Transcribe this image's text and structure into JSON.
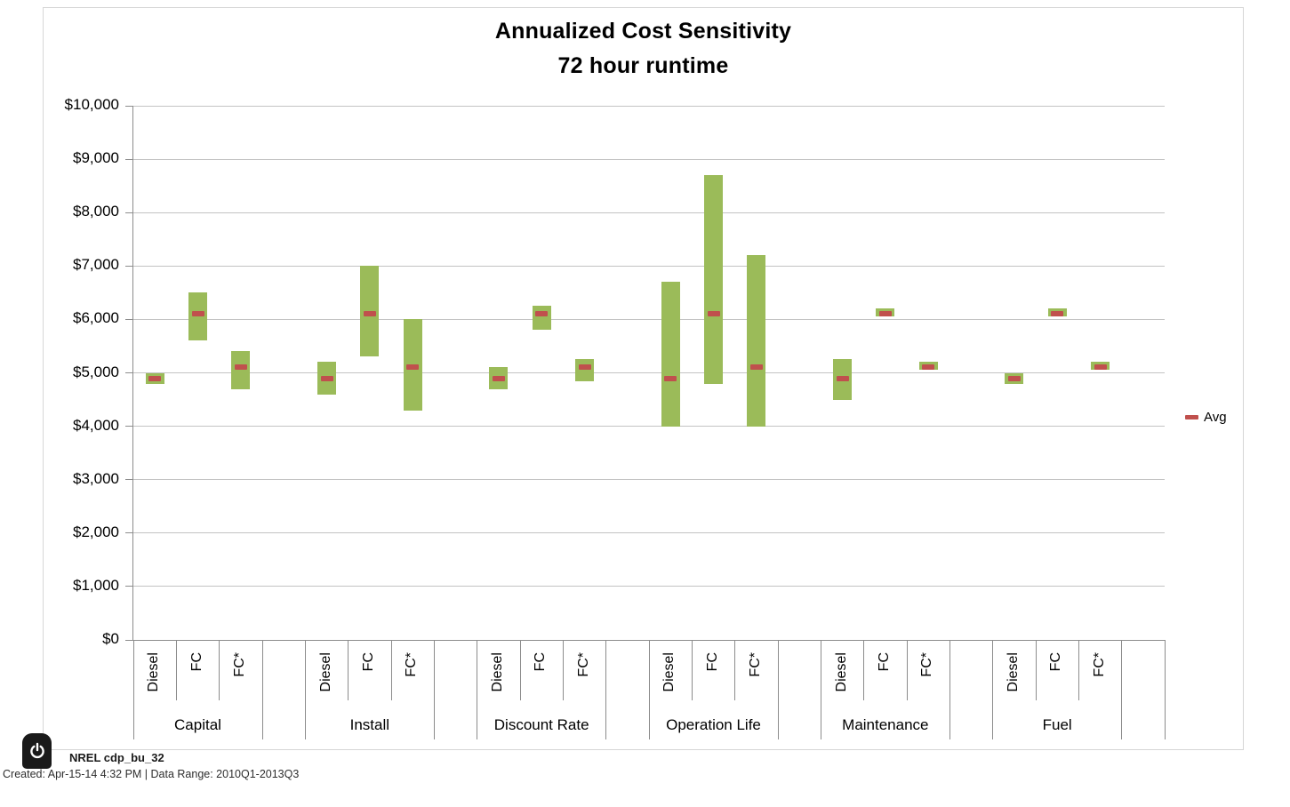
{
  "title": {
    "line1": "Annualized Cost Sensitivity",
    "line2": "72 hour runtime"
  },
  "legend": {
    "label": "Avg"
  },
  "footer": {
    "source": "NREL cdp_bu_32",
    "created": "Created: Apr-15-14  4:32 PM | Data Range: 2010Q1-2013Q3",
    "badge_icon": "power-icon"
  },
  "chart_data": {
    "type": "floating_bar_range_with_avg_markers",
    "title": "Annualized Cost Sensitivity",
    "subtitle": "72 hour runtime",
    "xlabel": "",
    "ylabel": "",
    "ylim": [
      0,
      10000
    ],
    "ytick_step": 1000,
    "ytick_labels": [
      "$0",
      "$1,000",
      "$2,000",
      "$3,000",
      "$4,000",
      "$5,000",
      "$6,000",
      "$7,000",
      "$8,000",
      "$9,000",
      "$10,000"
    ],
    "grid": true,
    "legend_position": "right-middle",
    "legend_entries": [
      {
        "name": "Avg",
        "marker": "dash",
        "color": "#C0504D"
      }
    ],
    "bar_color": "#9BBB59",
    "avg_color": "#C0504D",
    "bar_represents": "annualized cost min-max range ($/yr)",
    "marker_represents": "average annualized cost ($/yr)",
    "groups": [
      "Capital",
      "Install",
      "Discount Rate",
      "Operation Life",
      "Maintenance",
      "Fuel"
    ],
    "subcategories": [
      "Diesel",
      "FC",
      "FC*"
    ],
    "series": [
      {
        "group": "Capital",
        "fuel": "Diesel",
        "min": 4800,
        "max": 5000,
        "avg": 4900
      },
      {
        "group": "Capital",
        "fuel": "FC",
        "min": 5600,
        "max": 6500,
        "avg": 6100
      },
      {
        "group": "Capital",
        "fuel": "FC*",
        "min": 4700,
        "max": 5400,
        "avg": 5100
      },
      {
        "group": "Install",
        "fuel": "Diesel",
        "min": 4600,
        "max": 5200,
        "avg": 4900
      },
      {
        "group": "Install",
        "fuel": "FC",
        "min": 5300,
        "max": 7000,
        "avg": 6100
      },
      {
        "group": "Install",
        "fuel": "FC*",
        "min": 4300,
        "max": 6000,
        "avg": 5100
      },
      {
        "group": "Discount Rate",
        "fuel": "Diesel",
        "min": 4700,
        "max": 5100,
        "avg": 4900
      },
      {
        "group": "Discount Rate",
        "fuel": "FC",
        "min": 5800,
        "max": 6250,
        "avg": 6100
      },
      {
        "group": "Discount Rate",
        "fuel": "FC*",
        "min": 4850,
        "max": 5250,
        "avg": 5100
      },
      {
        "group": "Operation Life",
        "fuel": "Diesel",
        "min": 4000,
        "max": 6700,
        "avg": 4900
      },
      {
        "group": "Operation Life",
        "fuel": "FC",
        "min": 4800,
        "max": 8700,
        "avg": 6100
      },
      {
        "group": "Operation Life",
        "fuel": "FC*",
        "min": 4000,
        "max": 7200,
        "avg": 5100
      },
      {
        "group": "Maintenance",
        "fuel": "Diesel",
        "min": 4500,
        "max": 5250,
        "avg": 4900
      },
      {
        "group": "Maintenance",
        "fuel": "FC",
        "min": 6050,
        "max": 6200,
        "avg": 6100
      },
      {
        "group": "Maintenance",
        "fuel": "FC*",
        "min": 5050,
        "max": 5200,
        "avg": 5100
      },
      {
        "group": "Fuel",
        "fuel": "Diesel",
        "min": 4800,
        "max": 5000,
        "avg": 4900
      },
      {
        "group": "Fuel",
        "fuel": "FC",
        "min": 6050,
        "max": 6200,
        "avg": 6100
      },
      {
        "group": "Fuel",
        "fuel": "FC*",
        "min": 5050,
        "max": 5200,
        "avg": 5100
      }
    ]
  }
}
